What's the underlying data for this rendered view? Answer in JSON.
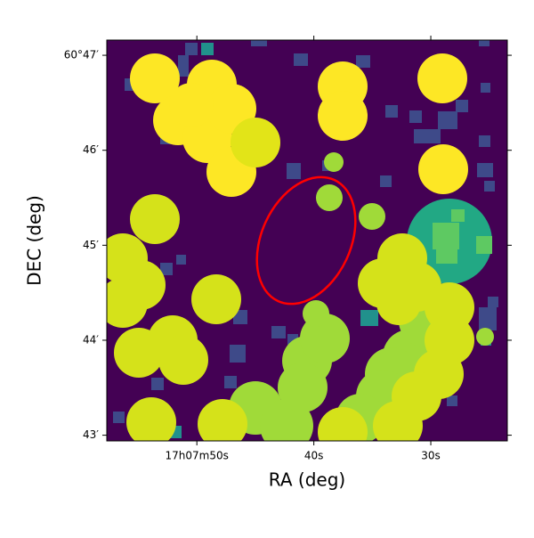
{
  "chart_data": {
    "type": "image",
    "x_label": "RA (deg)",
    "y_label": "DEC (deg)",
    "xlim": [
      57.7,
      23.46
    ],
    "ylim": [
      42.94,
      47.16
    ],
    "xticks": [
      {
        "value": 50,
        "label": "17h07m50s"
      },
      {
        "value": 40,
        "label": "40s"
      },
      {
        "value": 30,
        "label": "30s"
      }
    ],
    "yticks": [
      {
        "value": 47,
        "label": "60°47′"
      },
      {
        "value": 46,
        "label": "46′"
      },
      {
        "value": 45,
        "label": "45′"
      },
      {
        "value": 44,
        "label": "44′"
      },
      {
        "value": 43,
        "label": "43′"
      }
    ],
    "background": "#440154"
  }
}
